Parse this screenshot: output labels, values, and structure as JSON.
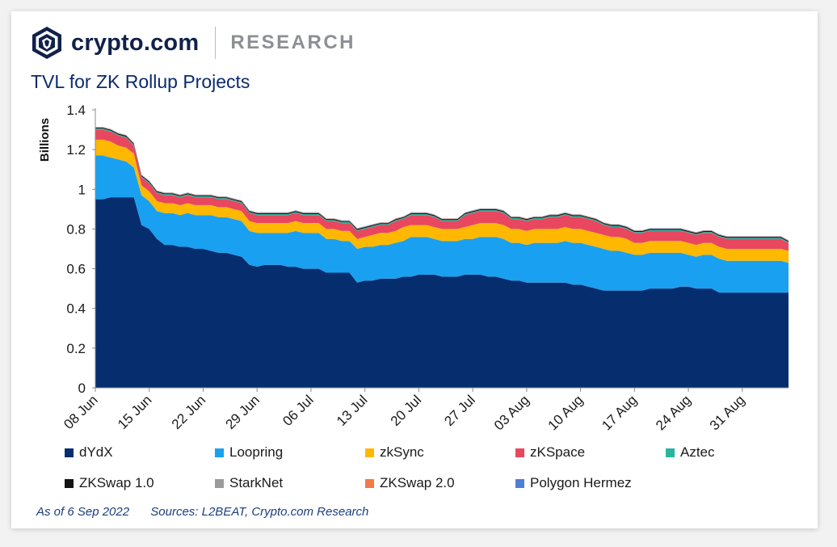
{
  "brand": {
    "name": "crypto.com",
    "sub": "RESEARCH"
  },
  "footer": {
    "as_of": "As of 6 Sep 2022",
    "sources": "Sources:  L2BEAT, Crypto.com Research"
  },
  "chart_data": {
    "type": "area",
    "stacked": true,
    "title": "TVL for ZK Rollup Projects",
    "xlabel": "",
    "ylabel": "Billions",
    "ylim": [
      0,
      1.4
    ],
    "yticks": [
      "0",
      "0.2",
      "0.4",
      "0.6",
      "0.8",
      "1",
      "1.2",
      "1.4"
    ],
    "yticks_values": [
      0,
      0.2,
      0.4,
      0.6,
      0.8,
      1.0,
      1.2,
      1.4
    ],
    "xtick_labels": [
      "08 Jun",
      "15 Jun",
      "22 Jun",
      "29 Jun",
      "06 Jul",
      "13 Jul",
      "20 Jul",
      "27 Jul",
      "03 Aug",
      "10 Aug",
      "17 Aug",
      "24 Aug",
      "31 Aug"
    ],
    "xtick_dates": [
      "2022-06-08",
      "2022-06-15",
      "2022-06-22",
      "2022-06-29",
      "2022-07-06",
      "2022-07-13",
      "2022-07-20",
      "2022-07-27",
      "2022-08-03",
      "2022-08-10",
      "2022-08-17",
      "2022-08-24",
      "2022-08-31"
    ],
    "x_start": "2022-06-08",
    "x_end": "2022-09-06",
    "grid": false,
    "legend_position": "bottom",
    "series": [
      {
        "name": "dYdX",
        "color": "#062e6f",
        "values": [
          0.95,
          0.95,
          0.96,
          0.96,
          0.96,
          0.96,
          0.82,
          0.8,
          0.75,
          0.72,
          0.72,
          0.71,
          0.71,
          0.7,
          0.7,
          0.69,
          0.68,
          0.68,
          0.67,
          0.66,
          0.62,
          0.61,
          0.62,
          0.62,
          0.62,
          0.61,
          0.61,
          0.6,
          0.6,
          0.6,
          0.58,
          0.58,
          0.58,
          0.58,
          0.53,
          0.54,
          0.54,
          0.55,
          0.55,
          0.55,
          0.56,
          0.56,
          0.57,
          0.57,
          0.57,
          0.56,
          0.56,
          0.56,
          0.57,
          0.57,
          0.57,
          0.56,
          0.56,
          0.55,
          0.54,
          0.54,
          0.53,
          0.53,
          0.53,
          0.53,
          0.53,
          0.53,
          0.52,
          0.52,
          0.51,
          0.5,
          0.49,
          0.49,
          0.49,
          0.49,
          0.49,
          0.49,
          0.5,
          0.5,
          0.5,
          0.5,
          0.51,
          0.51,
          0.5,
          0.5,
          0.5,
          0.48,
          0.48,
          0.48,
          0.48,
          0.48,
          0.48,
          0.48,
          0.48,
          0.48,
          0.48
        ]
      },
      {
        "name": "Loopring",
        "color": "#1aa0f0",
        "values": [
          0.22,
          0.22,
          0.2,
          0.19,
          0.18,
          0.15,
          0.15,
          0.14,
          0.14,
          0.16,
          0.16,
          0.16,
          0.17,
          0.17,
          0.17,
          0.18,
          0.18,
          0.18,
          0.18,
          0.18,
          0.17,
          0.17,
          0.16,
          0.16,
          0.16,
          0.17,
          0.18,
          0.18,
          0.18,
          0.18,
          0.17,
          0.17,
          0.16,
          0.16,
          0.17,
          0.17,
          0.17,
          0.17,
          0.17,
          0.18,
          0.18,
          0.2,
          0.19,
          0.19,
          0.18,
          0.18,
          0.18,
          0.18,
          0.18,
          0.18,
          0.19,
          0.2,
          0.2,
          0.2,
          0.19,
          0.19,
          0.19,
          0.2,
          0.2,
          0.2,
          0.2,
          0.21,
          0.21,
          0.21,
          0.21,
          0.21,
          0.21,
          0.2,
          0.2,
          0.19,
          0.18,
          0.18,
          0.18,
          0.18,
          0.18,
          0.18,
          0.17,
          0.16,
          0.16,
          0.17,
          0.17,
          0.17,
          0.16,
          0.16,
          0.16,
          0.16,
          0.16,
          0.16,
          0.16,
          0.16,
          0.15
        ]
      },
      {
        "name": "zkSync",
        "color": "#ffb800",
        "values": [
          0.08,
          0.08,
          0.08,
          0.07,
          0.07,
          0.07,
          0.05,
          0.05,
          0.05,
          0.05,
          0.05,
          0.05,
          0.05,
          0.05,
          0.05,
          0.05,
          0.05,
          0.05,
          0.05,
          0.05,
          0.05,
          0.05,
          0.05,
          0.05,
          0.05,
          0.05,
          0.05,
          0.05,
          0.05,
          0.05,
          0.05,
          0.05,
          0.05,
          0.05,
          0.05,
          0.05,
          0.06,
          0.06,
          0.06,
          0.06,
          0.07,
          0.06,
          0.06,
          0.06,
          0.06,
          0.06,
          0.06,
          0.06,
          0.06,
          0.07,
          0.07,
          0.07,
          0.07,
          0.07,
          0.07,
          0.07,
          0.07,
          0.07,
          0.07,
          0.07,
          0.07,
          0.07,
          0.07,
          0.07,
          0.07,
          0.07,
          0.07,
          0.07,
          0.07,
          0.07,
          0.06,
          0.06,
          0.06,
          0.06,
          0.06,
          0.06,
          0.06,
          0.06,
          0.06,
          0.06,
          0.06,
          0.06,
          0.06,
          0.06,
          0.06,
          0.06,
          0.06,
          0.06,
          0.06,
          0.06,
          0.06
        ]
      },
      {
        "name": "zKSpace",
        "color": "#e8475f",
        "values": [
          0.05,
          0.05,
          0.05,
          0.05,
          0.05,
          0.04,
          0.04,
          0.04,
          0.04,
          0.04,
          0.04,
          0.04,
          0.04,
          0.04,
          0.04,
          0.04,
          0.04,
          0.04,
          0.04,
          0.04,
          0.04,
          0.04,
          0.04,
          0.04,
          0.04,
          0.04,
          0.04,
          0.04,
          0.04,
          0.04,
          0.04,
          0.04,
          0.04,
          0.04,
          0.04,
          0.04,
          0.04,
          0.04,
          0.04,
          0.05,
          0.04,
          0.05,
          0.05,
          0.05,
          0.05,
          0.04,
          0.04,
          0.04,
          0.06,
          0.06,
          0.06,
          0.06,
          0.06,
          0.06,
          0.05,
          0.05,
          0.05,
          0.05,
          0.05,
          0.06,
          0.06,
          0.06,
          0.06,
          0.06,
          0.06,
          0.06,
          0.05,
          0.05,
          0.05,
          0.05,
          0.05,
          0.05,
          0.05,
          0.05,
          0.05,
          0.05,
          0.05,
          0.05,
          0.05,
          0.05,
          0.05,
          0.05,
          0.05,
          0.05,
          0.05,
          0.05,
          0.05,
          0.05,
          0.05,
          0.05,
          0.04
        ]
      },
      {
        "name": "Aztec",
        "color": "#2ab5a0",
        "values": [
          0.005,
          0.005,
          0.005,
          0.005,
          0.005,
          0.005,
          0.005,
          0.005,
          0.005,
          0.005,
          0.005,
          0.005,
          0.005,
          0.005,
          0.005,
          0.005,
          0.005,
          0.005,
          0.005,
          0.005,
          0.005,
          0.005,
          0.005,
          0.005,
          0.005,
          0.005,
          0.005,
          0.005,
          0.005,
          0.005,
          0.005,
          0.005,
          0.005,
          0.005,
          0.005,
          0.005,
          0.005,
          0.005,
          0.005,
          0.005,
          0.005,
          0.005,
          0.005,
          0.005,
          0.005,
          0.005,
          0.005,
          0.005,
          0.005,
          0.005,
          0.005,
          0.005,
          0.005,
          0.005,
          0.005,
          0.005,
          0.005,
          0.005,
          0.005,
          0.005,
          0.005,
          0.005,
          0.005,
          0.005,
          0.005,
          0.005,
          0.005,
          0.005,
          0.005,
          0.005,
          0.005,
          0.005,
          0.005,
          0.005,
          0.005,
          0.005,
          0.005,
          0.005,
          0.005,
          0.005,
          0.005,
          0.005,
          0.005,
          0.005,
          0.005,
          0.005,
          0.005,
          0.005,
          0.005,
          0.005,
          0.005
        ]
      },
      {
        "name": "ZKSwap 1.0",
        "color": "#141414",
        "values": [
          0.005,
          0.005,
          0.005,
          0.005,
          0.005,
          0.005,
          0.005,
          0.005,
          0.005,
          0.005,
          0.005,
          0.005,
          0.005,
          0.005,
          0.005,
          0.005,
          0.005,
          0.005,
          0.005,
          0.005,
          0.005,
          0.005,
          0.005,
          0.005,
          0.005,
          0.005,
          0.005,
          0.005,
          0.005,
          0.005,
          0.005,
          0.005,
          0.005,
          0.005,
          0.005,
          0.005,
          0.005,
          0.005,
          0.005,
          0.005,
          0.005,
          0.005,
          0.005,
          0.005,
          0.005,
          0.005,
          0.005,
          0.005,
          0.005,
          0.005,
          0.005,
          0.005,
          0.005,
          0.005,
          0.005,
          0.005,
          0.005,
          0.005,
          0.005,
          0.005,
          0.005,
          0.005,
          0.005,
          0.005,
          0.005,
          0.005,
          0.005,
          0.005,
          0.005,
          0.005,
          0.005,
          0.005,
          0.005,
          0.005,
          0.005,
          0.005,
          0.005,
          0.005,
          0.005,
          0.005,
          0.005,
          0.005,
          0.005,
          0.005,
          0.005,
          0.005,
          0.005,
          0.005,
          0.005,
          0.005,
          0.005
        ]
      },
      {
        "name": "StarkNet",
        "color": "#9b9b9b",
        "values": [
          0.002,
          0.002,
          0.002,
          0.002,
          0.002,
          0.002,
          0.002,
          0.002,
          0.002,
          0.002,
          0.002,
          0.002,
          0.002,
          0.002,
          0.002,
          0.002,
          0.002,
          0.002,
          0.002,
          0.002,
          0.002,
          0.002,
          0.002,
          0.002,
          0.002,
          0.002,
          0.002,
          0.002,
          0.002,
          0.002,
          0.002,
          0.002,
          0.002,
          0.002,
          0.002,
          0.002,
          0.002,
          0.002,
          0.002,
          0.002,
          0.002,
          0.002,
          0.002,
          0.002,
          0.002,
          0.002,
          0.002,
          0.002,
          0.002,
          0.002,
          0.002,
          0.002,
          0.002,
          0.002,
          0.002,
          0.002,
          0.002,
          0.002,
          0.002,
          0.002,
          0.002,
          0.002,
          0.002,
          0.002,
          0.002,
          0.002,
          0.002,
          0.002,
          0.002,
          0.002,
          0.002,
          0.002,
          0.002,
          0.002,
          0.002,
          0.002,
          0.002,
          0.002,
          0.002,
          0.002,
          0.002,
          0.002,
          0.002,
          0.002,
          0.002,
          0.002,
          0.002,
          0.002,
          0.002,
          0.002,
          0.002
        ]
      },
      {
        "name": "ZKSwap 2.0",
        "color": "#f07a48",
        "values": [
          0.001,
          0.001,
          0.001,
          0.001,
          0.001,
          0.001,
          0.001,
          0.001,
          0.001,
          0.001,
          0.001,
          0.001,
          0.001,
          0.001,
          0.001,
          0.001,
          0.001,
          0.001,
          0.001,
          0.001,
          0.001,
          0.001,
          0.001,
          0.001,
          0.001,
          0.001,
          0.001,
          0.001,
          0.001,
          0.001,
          0.001,
          0.001,
          0.001,
          0.001,
          0.001,
          0.001,
          0.001,
          0.001,
          0.001,
          0.001,
          0.001,
          0.001,
          0.001,
          0.001,
          0.001,
          0.001,
          0.001,
          0.001,
          0.001,
          0.001,
          0.001,
          0.001,
          0.001,
          0.001,
          0.001,
          0.001,
          0.001,
          0.001,
          0.001,
          0.001,
          0.001,
          0.001,
          0.001,
          0.001,
          0.001,
          0.001,
          0.001,
          0.001,
          0.001,
          0.001,
          0.001,
          0.001,
          0.001,
          0.001,
          0.001,
          0.001,
          0.001,
          0.001,
          0.001,
          0.001,
          0.001,
          0.001,
          0.001,
          0.001,
          0.001,
          0.001,
          0.001,
          0.001,
          0.001,
          0.001,
          0.001
        ]
      },
      {
        "name": "Polygon Hermez",
        "color": "#4f7fd2",
        "values": [
          0.001,
          0.001,
          0.001,
          0.001,
          0.001,
          0.001,
          0.001,
          0.001,
          0.001,
          0.001,
          0.001,
          0.001,
          0.001,
          0.001,
          0.001,
          0.001,
          0.001,
          0.001,
          0.001,
          0.001,
          0.001,
          0.001,
          0.001,
          0.001,
          0.001,
          0.001,
          0.001,
          0.001,
          0.001,
          0.001,
          0.001,
          0.001,
          0.001,
          0.001,
          0.001,
          0.001,
          0.001,
          0.001,
          0.001,
          0.001,
          0.001,
          0.001,
          0.001,
          0.001,
          0.001,
          0.001,
          0.001,
          0.001,
          0.001,
          0.001,
          0.001,
          0.001,
          0.001,
          0.001,
          0.001,
          0.001,
          0.001,
          0.001,
          0.001,
          0.001,
          0.001,
          0.001,
          0.001,
          0.001,
          0.001,
          0.001,
          0.001,
          0.001,
          0.001,
          0.001,
          0.001,
          0.001,
          0.001,
          0.001,
          0.001,
          0.001,
          0.001,
          0.001,
          0.001,
          0.001,
          0.001,
          0.001,
          0.001,
          0.001,
          0.001,
          0.001,
          0.001,
          0.001,
          0.001,
          0.001,
          0.001
        ]
      }
    ]
  }
}
